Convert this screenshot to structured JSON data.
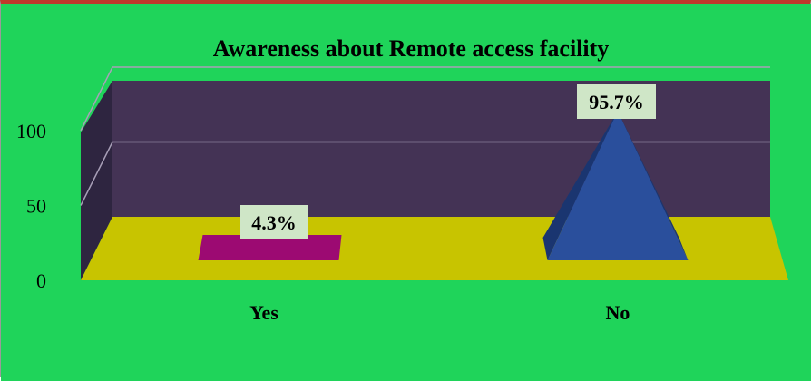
{
  "chart_data": {
    "type": "bar",
    "title": "Awareness about Remote access facility",
    "categories": [
      "Yes",
      "No"
    ],
    "values": [
      4.3,
      95.7
    ],
    "data_labels": [
      "4.3%",
      "95.7%"
    ],
    "y_ticks": [
      "0",
      "50",
      "100"
    ],
    "ylim": [
      0,
      100
    ],
    "grid": true,
    "legend": "none",
    "colors": {
      "background": "#1fd45a",
      "back_wall": "#443355",
      "side_wall": "#2e2540",
      "floor": "#c8c400",
      "gridline": "#a8a0b8",
      "bar_yes": "#9c0a72",
      "bar_no": "#2a4f9c",
      "bar_no_shade": "#1a3570",
      "label_bg": "#cfe6c7"
    }
  }
}
